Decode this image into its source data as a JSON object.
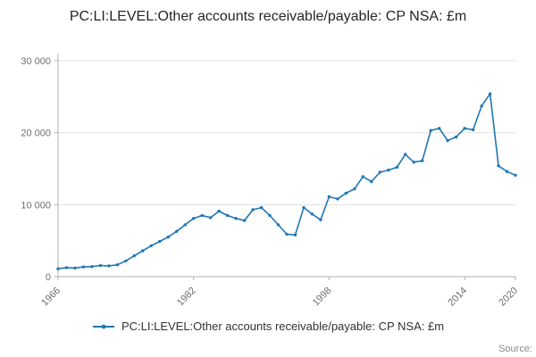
{
  "title": "PC:LI:LEVEL:Other accounts receivable/payable: CP NSA: £m",
  "legend": {
    "label": "PC:LI:LEVEL:Other accounts receivable/payable: CP NSA: £m"
  },
  "source": "Source:",
  "colors": {
    "line": "#1f77b4",
    "grid": "#e0e0e0",
    "axis": "#b0b0b0",
    "tick_text": "#6e6e6e",
    "title_text": "#262626"
  },
  "chart_data": {
    "type": "line",
    "title": "PC:LI:LEVEL:Other accounts receivable/payable: CP NSA: £m",
    "xlabel": "",
    "ylabel": "",
    "grid": true,
    "legend_position": "bottom",
    "marker": "circle",
    "ylim": [
      0,
      30000
    ],
    "yticks": [
      0,
      10000,
      20000,
      30000
    ],
    "ytick_labels": [
      "0",
      "10 000",
      "20 000",
      "30 000"
    ],
    "xticks": [
      1966,
      1982,
      1998,
      2014,
      2020
    ],
    "x": [
      1966,
      1967,
      1968,
      1969,
      1970,
      1971,
      1972,
      1973,
      1974,
      1975,
      1976,
      1977,
      1978,
      1979,
      1980,
      1981,
      1982,
      1983,
      1984,
      1985,
      1986,
      1987,
      1988,
      1989,
      1990,
      1991,
      1992,
      1993,
      1994,
      1995,
      1996,
      1997,
      1998,
      1999,
      2000,
      2001,
      2002,
      2003,
      2004,
      2005,
      2006,
      2007,
      2008,
      2009,
      2010,
      2011,
      2012,
      2013,
      2014,
      2015,
      2016,
      2017,
      2018,
      2019,
      2020
    ],
    "values": [
      1100,
      1250,
      1200,
      1350,
      1400,
      1550,
      1500,
      1650,
      2200,
      2900,
      3600,
      4300,
      4900,
      5500,
      6300,
      7200,
      8100,
      8500,
      8200,
      9100,
      8500,
      8100,
      7800,
      9300,
      9600,
      8500,
      7200,
      5900,
      5800,
      9600,
      8700,
      7900,
      11100,
      10800,
      11600,
      12200,
      13900,
      13200,
      14500,
      14800,
      15200,
      17000,
      15900,
      16100,
      20300,
      20600,
      18900,
      19400,
      20600,
      20400,
      23700,
      25400,
      15400,
      14600,
      14100
    ]
  }
}
